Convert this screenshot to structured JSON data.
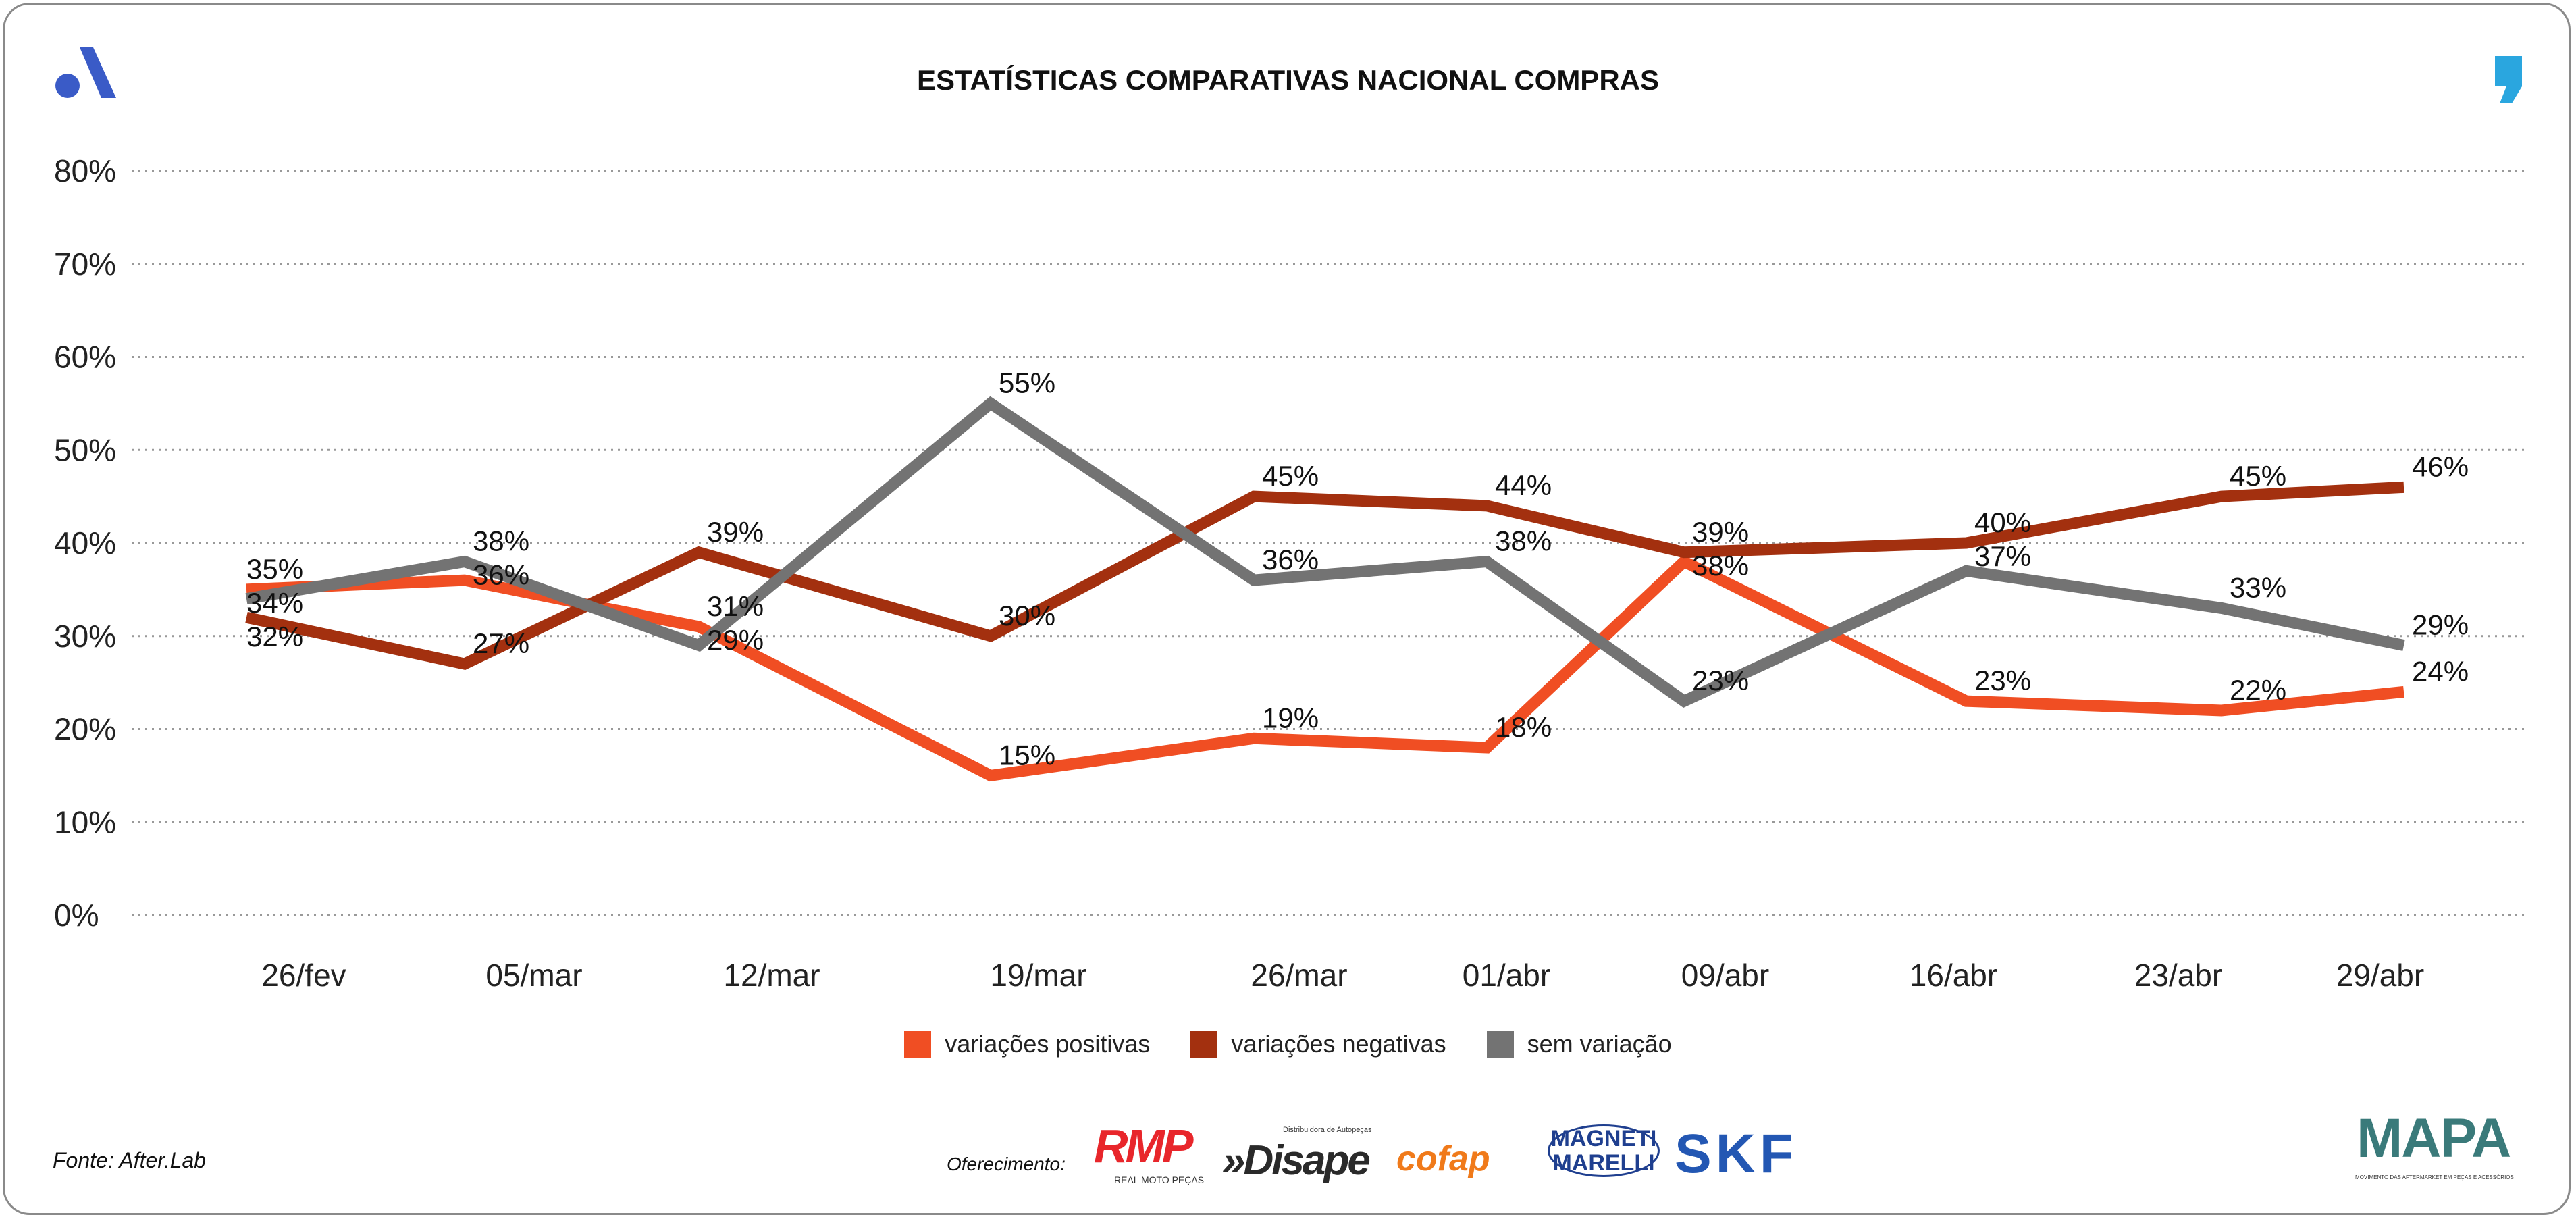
{
  "chart_data": {
    "type": "line",
    "title": "ESTATÍSTICAS COMPARATIVAS NACIONAL COMPRAS",
    "categories": [
      "26/fev",
      "05/mar",
      "12/mar",
      "19/mar",
      "26/mar",
      "01/abr",
      "09/abr",
      "16/abr",
      "23/abr",
      "29/abr"
    ],
    "ylim": [
      0,
      80
    ],
    "yticks": [
      "0%",
      "10%",
      "20%",
      "30%",
      "40%",
      "50%",
      "60%",
      "70%",
      "80%"
    ],
    "grid": true,
    "legend_position": "bottom",
    "series": [
      {
        "name": "variações positivas",
        "color": "#f04e23",
        "values": [
          35,
          36,
          31,
          15,
          19,
          18,
          38,
          23,
          22,
          24
        ]
      },
      {
        "name": "variações negativas",
        "color": "#a3300f",
        "values": [
          32,
          27,
          39,
          30,
          45,
          44,
          39,
          40,
          45,
          46
        ]
      },
      {
        "name": "sem variação",
        "color": "#737373",
        "values": [
          34,
          38,
          29,
          55,
          36,
          38,
          23,
          37,
          33,
          29
        ]
      }
    ]
  },
  "footer": {
    "source": "Fonte: After.Lab",
    "sponsor_label": "Oferecimento:"
  },
  "logos": {
    "rmp": "RMP",
    "rmp_sub": "REAL MOTO PEÇAS",
    "disape": "»Disape",
    "disape_sub": "Distribuidora de Autopeças",
    "cofap": "cofap",
    "magneti": "MAGNETI MARELLI",
    "skf": "SKF",
    "mapa": "MAPA",
    "mapa_sub": "MOVIMENTO DAS AFTERMARKET EM PEÇAS E ACESSÓRIOS"
  }
}
